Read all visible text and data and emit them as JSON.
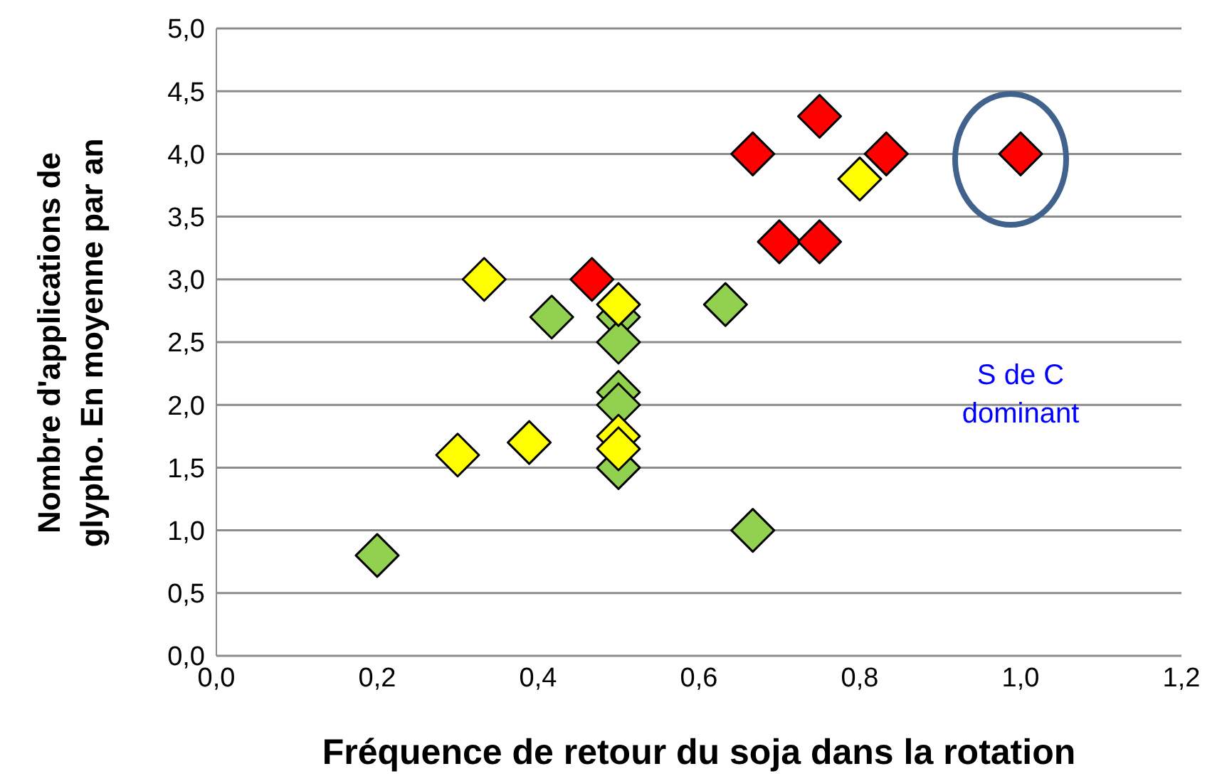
{
  "chart_data": {
    "type": "scatter",
    "xlabel": "Fréquence de retour du soja dans la rotation",
    "ylabel": "Nombre d'applications de glypho. En moyenne par an",
    "annotations": [
      "S de C dominant"
    ],
    "marker": "diamond",
    "grid": "y",
    "legend": false,
    "xlim": [
      0,
      1.2
    ],
    "xticks": [
      {
        "value": 0,
        "label": "0,0"
      },
      {
        "value": 0.2,
        "label": "0,2"
      },
      {
        "value": 0.4,
        "label": "0,4"
      },
      {
        "value": 0.6,
        "label": "0,6"
      },
      {
        "value": 0.8,
        "label": "0,8"
      },
      {
        "value": 1,
        "label": "1,0"
      },
      {
        "value": 1.2,
        "label": "1,2"
      }
    ],
    "ylim": [
      0,
      5
    ],
    "yticks": [
      {
        "value": 0,
        "label": "0,0"
      },
      {
        "value": 0.5,
        "label": "0,5"
      },
      {
        "value": 1,
        "label": "1,0"
      },
      {
        "value": 1.5,
        "label": "1,5"
      },
      {
        "value": 2,
        "label": "2,0"
      },
      {
        "value": 2.5,
        "label": "2,5"
      },
      {
        "value": 3,
        "label": "3,0"
      },
      {
        "value": 3.5,
        "label": "3,5"
      },
      {
        "value": 4,
        "label": "4,0"
      },
      {
        "value": 4.5,
        "label": "4,5"
      },
      {
        "value": 5,
        "label": "5,0"
      }
    ],
    "series": [
      {
        "color": "#92d050",
        "x": [
          0.2,
          0.417,
          0.5,
          0.5,
          0.5,
          0.5,
          0.5,
          0.633,
          0.667
        ],
        "values": [
          0.8,
          2.7,
          2.7,
          2.5,
          2.1,
          2.0,
          1.5,
          2.8,
          1.0
        ]
      },
      {
        "color": "#ffff00",
        "x": [
          0.333,
          0.5,
          0.3,
          0.389,
          0.5,
          0.5,
          0.8
        ],
        "values": [
          3.0,
          2.8,
          1.6,
          1.7,
          1.75,
          1.65,
          3.8
        ]
      },
      {
        "color": "#ff0000",
        "x": [
          0.467,
          0.667,
          0.75,
          0.833,
          0.7,
          0.75,
          1.0
        ],
        "values": [
          3.0,
          4.0,
          4.3,
          4.0,
          3.3,
          3.3,
          4.0
        ]
      }
    ]
  }
}
